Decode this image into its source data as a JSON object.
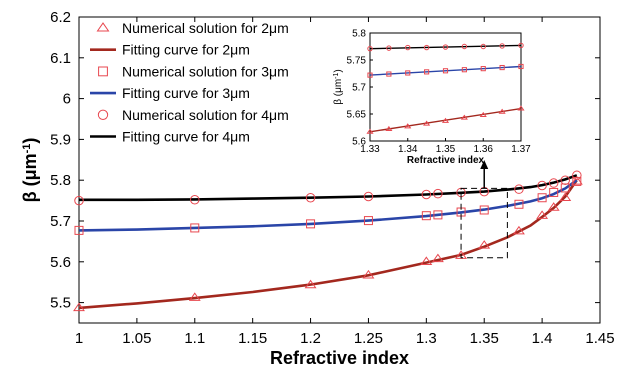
{
  "chart_data": [
    {
      "type": "line",
      "xlabel": "Refractive index",
      "ylabel_main": "β (μm",
      "ylabel_sup": "-1",
      "ylabel_close": ")",
      "xlim": [
        1,
        1.45
      ],
      "ylim": [
        5.45,
        6.2
      ],
      "xticks": [
        1,
        1.05,
        1.1,
        1.15,
        1.2,
        1.25,
        1.3,
        1.35,
        1.4,
        1.45
      ],
      "xtick_labels": [
        "1",
        "1.05",
        "1.1",
        "1.15",
        "1.2",
        "1.25",
        "1.3",
        "1.35",
        "1.4",
        "1.45"
      ],
      "yticks": [
        5.5,
        5.6,
        5.7,
        5.8,
        5.9,
        6.0,
        6.1,
        6.2
      ],
      "ytick_labels": [
        "5.5",
        "5.6",
        "5.7",
        "5.8",
        "5.9",
        "6",
        "6.1",
        "6.2"
      ],
      "grid": false,
      "legend_position": "top-left",
      "legend": [
        {
          "label": "Numerical solution for 2μm",
          "marker": "triangle",
          "color": "#e8474f"
        },
        {
          "label": "Fitting curve for 2μm",
          "line": true,
          "color": "#a3281e"
        },
        {
          "label": "Numerical solution for 3μm",
          "marker": "square",
          "color": "#e8474f"
        },
        {
          "label": "Fitting curve for 3μm",
          "line": true,
          "color": "#2a45a8"
        },
        {
          "label": "Numerical solution for 4μm",
          "marker": "circle",
          "color": "#e8474f"
        },
        {
          "label": "Fitting curve for 4μm",
          "line": true,
          "color": "#000000"
        }
      ],
      "series": [
        {
          "kind": "markers",
          "marker": "triangle",
          "color": "#e8474f",
          "x": [
            1,
            1.1,
            1.2,
            1.25,
            1.3,
            1.31,
            1.33,
            1.35,
            1.38,
            1.4,
            1.41,
            1.42,
            1.43
          ],
          "y": [
            5.487,
            5.512,
            5.543,
            5.567,
            5.6,
            5.607,
            5.615,
            5.64,
            5.675,
            5.713,
            5.733,
            5.757,
            5.797
          ]
        },
        {
          "kind": "line",
          "color": "#a3281e",
          "x": [
            1,
            1.05,
            1.1,
            1.15,
            1.2,
            1.25,
            1.3,
            1.33,
            1.35,
            1.37,
            1.39,
            1.4,
            1.41,
            1.42,
            1.43
          ],
          "y": [
            5.487,
            5.498,
            5.511,
            5.526,
            5.544,
            5.567,
            5.598,
            5.617,
            5.637,
            5.66,
            5.689,
            5.71,
            5.732,
            5.76,
            5.8
          ]
        },
        {
          "kind": "markers",
          "marker": "square",
          "color": "#e8474f",
          "x": [
            1,
            1.1,
            1.2,
            1.25,
            1.3,
            1.31,
            1.33,
            1.35,
            1.38,
            1.4,
            1.41,
            1.42,
            1.43
          ],
          "y": [
            5.677,
            5.683,
            5.693,
            5.701,
            5.713,
            5.715,
            5.722,
            5.727,
            5.741,
            5.757,
            5.77,
            5.781,
            5.797
          ]
        },
        {
          "kind": "line",
          "color": "#2a45a8",
          "x": [
            1,
            1.05,
            1.1,
            1.15,
            1.2,
            1.25,
            1.3,
            1.33,
            1.35,
            1.37,
            1.39,
            1.4,
            1.41,
            1.42,
            1.43
          ],
          "y": [
            5.677,
            5.679,
            5.683,
            5.687,
            5.693,
            5.701,
            5.712,
            5.721,
            5.728,
            5.737,
            5.748,
            5.756,
            5.766,
            5.78,
            5.8
          ]
        },
        {
          "kind": "markers",
          "marker": "circle",
          "color": "#e8474f",
          "x": [
            1,
            1.1,
            1.2,
            1.25,
            1.3,
            1.31,
            1.33,
            1.35,
            1.38,
            1.4,
            1.41,
            1.42,
            1.43
          ],
          "y": [
            5.75,
            5.752,
            5.757,
            5.76,
            5.765,
            5.767,
            5.77,
            5.772,
            5.778,
            5.787,
            5.793,
            5.8,
            5.812
          ]
        },
        {
          "kind": "line",
          "color": "#000000",
          "x": [
            1,
            1.05,
            1.1,
            1.15,
            1.2,
            1.25,
            1.3,
            1.33,
            1.35,
            1.37,
            1.39,
            1.4,
            1.41,
            1.42,
            1.43
          ],
          "y": [
            5.752,
            5.752,
            5.753,
            5.755,
            5.757,
            5.76,
            5.765,
            5.769,
            5.772,
            5.777,
            5.783,
            5.788,
            5.794,
            5.802,
            5.812
          ]
        }
      ],
      "annotation": {
        "box_x": [
          1.33,
          1.37
        ],
        "box_y": [
          5.61,
          5.78
        ],
        "arrow": "points to inset"
      }
    },
    {
      "type": "line",
      "inset": true,
      "xlabel": "Refractive index",
      "ylabel_main": "β (μm",
      "ylabel_sup": "-1",
      "ylabel_close": ")",
      "xlim": [
        1.33,
        1.37
      ],
      "ylim": [
        5.6,
        5.8
      ],
      "xticks": [
        1.33,
        1.34,
        1.35,
        1.36,
        1.37
      ],
      "xtick_labels": [
        "1.33",
        "1.34",
        "1.35",
        "1.36",
        "1.37"
      ],
      "yticks": [
        5.6,
        5.65,
        5.7,
        5.75,
        5.8
      ],
      "ytick_labels": [
        "5.6",
        "5.65",
        "5.7",
        "5.75",
        "5.8"
      ],
      "series": [
        {
          "kind": "markers",
          "marker": "triangle",
          "color": "#e8474f",
          "x": [
            1.33,
            1.335,
            1.34,
            1.345,
            1.35,
            1.355,
            1.36,
            1.365,
            1.37
          ],
          "y": [
            5.617,
            5.622,
            5.627,
            5.632,
            5.637,
            5.643,
            5.648,
            5.654,
            5.66
          ]
        },
        {
          "kind": "line",
          "color": "#a3281e",
          "x": [
            1.33,
            1.37
          ],
          "y": [
            5.617,
            5.66
          ]
        },
        {
          "kind": "markers",
          "marker": "square",
          "color": "#e8474f",
          "x": [
            1.33,
            1.335,
            1.34,
            1.345,
            1.35,
            1.355,
            1.36,
            1.365,
            1.37
          ],
          "y": [
            5.722,
            5.724,
            5.726,
            5.728,
            5.73,
            5.732,
            5.734,
            5.736,
            5.738
          ]
        },
        {
          "kind": "line",
          "color": "#2a45a8",
          "x": [
            1.33,
            1.37
          ],
          "y": [
            5.722,
            5.738
          ]
        },
        {
          "kind": "markers",
          "marker": "circle",
          "color": "#e8474f",
          "x": [
            1.33,
            1.335,
            1.34,
            1.345,
            1.35,
            1.355,
            1.36,
            1.365,
            1.37
          ],
          "y": [
            5.771,
            5.772,
            5.773,
            5.773,
            5.774,
            5.775,
            5.775,
            5.776,
            5.777
          ]
        },
        {
          "kind": "line",
          "color": "#000000",
          "x": [
            1.33,
            1.37
          ],
          "y": [
            5.771,
            5.777
          ]
        }
      ]
    }
  ]
}
